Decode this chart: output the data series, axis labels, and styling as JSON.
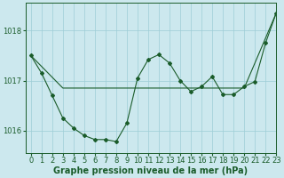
{
  "title": "Graphe pression niveau de la mer (hPa)",
  "background_color": "#cce8ee",
  "grid_color": "#9ecdd6",
  "line_color": "#1a5c2a",
  "xlim": [
    -0.5,
    23
  ],
  "ylim": [
    1015.55,
    1018.55
  ],
  "yticks": [
    1016,
    1017,
    1018
  ],
  "xticks": [
    0,
    1,
    2,
    3,
    4,
    5,
    6,
    7,
    8,
    9,
    10,
    11,
    12,
    13,
    14,
    15,
    16,
    17,
    18,
    19,
    20,
    21,
    22,
    23
  ],
  "series1_x": [
    0,
    1,
    2,
    3,
    4,
    5,
    6,
    7,
    8,
    9,
    10,
    11,
    12,
    13,
    14,
    15,
    16,
    17,
    18,
    19,
    20,
    21,
    22,
    23
  ],
  "series1_y": [
    1017.5,
    1017.15,
    1016.7,
    1016.25,
    1016.05,
    1015.9,
    1015.82,
    1015.82,
    1015.78,
    1016.15,
    1017.05,
    1017.42,
    1017.52,
    1017.35,
    1017.0,
    1016.78,
    1016.88,
    1017.08,
    1016.72,
    1016.72,
    1016.88,
    1016.98,
    1017.75,
    1018.35
  ],
  "series2_x": [
    0,
    3,
    10,
    14,
    20,
    23
  ],
  "series2_y": [
    1017.5,
    1016.85,
    1016.85,
    1016.85,
    1016.85,
    1018.35
  ],
  "tick_fontsize": 6,
  "title_fontsize": 7
}
